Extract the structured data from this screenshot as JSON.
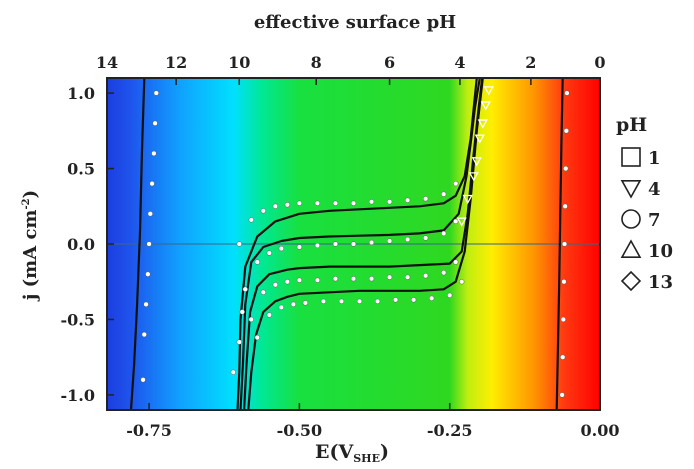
{
  "chart_data": {
    "type": "line",
    "title": "effective surface pH",
    "xlabel": "E(V",
    "xlabel_sub": "SHE",
    "xlabel_close": ")",
    "ylabel": "j (mA cm",
    "ylabel_sup": "-2",
    "ylabel_close": ")",
    "xlim": [
      -0.82,
      0.0
    ],
    "ylim": [
      -1.1,
      1.1
    ],
    "x_ticks": [
      {
        "value": -0.75,
        "label": "-0.75"
      },
      {
        "value": -0.5,
        "label": "-0.50"
      },
      {
        "value": -0.25,
        "label": "-0.25"
      },
      {
        "value": 0.0,
        "label": "0.00"
      }
    ],
    "y_ticks": [
      {
        "value": 1.0,
        "label": "1.0"
      },
      {
        "value": 0.5,
        "label": "0.5"
      },
      {
        "value": 0.0,
        "label": "0.0"
      },
      {
        "value": -0.5,
        "label": "-0.5"
      },
      {
        "value": -1.0,
        "label": "-1.0"
      }
    ],
    "top_axis": {
      "label": "effective surface pH",
      "ticks": [
        {
          "value": -0.82,
          "label": "14"
        },
        {
          "value": -0.705,
          "label": "12"
        },
        {
          "value": -0.6,
          "label": "10"
        },
        {
          "value": -0.472,
          "label": "8"
        },
        {
          "value": -0.35,
          "label": "6"
        },
        {
          "value": -0.233,
          "label": "4"
        },
        {
          "value": -0.115,
          "label": "2"
        },
        {
          "value": 0.0,
          "label": "0"
        }
      ]
    },
    "legend": {
      "title": "pH",
      "placement": "right",
      "items": [
        {
          "symbol": "square",
          "label": "1"
        },
        {
          "symbol": "triangle-down",
          "label": "4"
        },
        {
          "symbol": "circle",
          "label": "7"
        },
        {
          "symbol": "triangle-up",
          "label": "10"
        },
        {
          "symbol": "diamond",
          "label": "13"
        }
      ]
    },
    "background": {
      "kind": "pH color gradient",
      "stops": [
        {
          "x": -0.82,
          "color": "#1c3ee0"
        },
        {
          "x": -0.78,
          "color": "#1e54ec"
        },
        {
          "x": -0.7,
          "color": "#10a0ff"
        },
        {
          "x": -0.61,
          "color": "#00e0ff"
        },
        {
          "x": -0.56,
          "color": "#00e890"
        },
        {
          "x": -0.5,
          "color": "#18e040"
        },
        {
          "x": -0.25,
          "color": "#2fd820"
        },
        {
          "x": -0.22,
          "color": "#c0ee10"
        },
        {
          "x": -0.18,
          "color": "#ffee00"
        },
        {
          "x": -0.11,
          "color": "#ff9500"
        },
        {
          "x": -0.06,
          "color": "#ff3a10"
        },
        {
          "x": 0.0,
          "color": "#ff0000"
        }
      ]
    },
    "series": [
      {
        "style": "line",
        "x": [
          -0.603,
          -0.6,
          -0.598,
          -0.59,
          -0.57,
          -0.54,
          -0.5,
          -0.45,
          -0.4,
          -0.35,
          -0.3,
          -0.26,
          -0.24,
          -0.225,
          -0.215,
          -0.21,
          -0.205
        ],
        "y": [
          -1.1,
          -0.85,
          -0.5,
          -0.15,
          0.05,
          0.15,
          0.2,
          0.22,
          0.23,
          0.24,
          0.25,
          0.27,
          0.32,
          0.45,
          0.7,
          0.9,
          1.1
        ]
      },
      {
        "style": "line",
        "x": [
          -0.598,
          -0.594,
          -0.59,
          -0.58,
          -0.56,
          -0.53,
          -0.5,
          -0.45,
          -0.4,
          -0.35,
          -0.3,
          -0.26,
          -0.235,
          -0.222,
          -0.214,
          -0.208,
          -0.2
        ],
        "y": [
          -1.1,
          -0.8,
          -0.4,
          -0.12,
          -0.02,
          0.02,
          0.04,
          0.05,
          0.055,
          0.06,
          0.07,
          0.09,
          0.2,
          0.45,
          0.7,
          0.9,
          1.1
        ]
      },
      {
        "style": "line",
        "x": [
          -0.592,
          -0.588,
          -0.582,
          -0.57,
          -0.55,
          -0.52,
          -0.5,
          -0.45,
          -0.4,
          -0.35,
          -0.3,
          -0.25,
          -0.23,
          -0.22,
          -0.21,
          -0.202,
          -0.196
        ],
        "y": [
          -1.1,
          -0.8,
          -0.45,
          -0.28,
          -0.2,
          -0.17,
          -0.16,
          -0.15,
          -0.15,
          -0.15,
          -0.14,
          -0.13,
          -0.05,
          0.2,
          0.6,
          0.9,
          1.1
        ]
      },
      {
        "style": "line",
        "x": [
          -0.585,
          -0.58,
          -0.572,
          -0.56,
          -0.54,
          -0.52,
          -0.5,
          -0.45,
          -0.4,
          -0.35,
          -0.3,
          -0.26,
          -0.24,
          -0.225,
          -0.215,
          -0.205,
          -0.195
        ],
        "y": [
          -1.1,
          -0.85,
          -0.6,
          -0.45,
          -0.38,
          -0.35,
          -0.33,
          -0.32,
          -0.31,
          -0.31,
          -0.31,
          -0.3,
          -0.25,
          -0.05,
          0.3,
          0.75,
          1.1
        ]
      },
      {
        "style": "line",
        "x": [
          -0.78,
          -0.775,
          -0.77,
          -0.765,
          -0.762,
          -0.758
        ],
        "y": [
          -1.1,
          -0.8,
          -0.4,
          0.1,
          0.6,
          1.1
        ]
      },
      {
        "style": "line",
        "x": [
          -0.072,
          -0.07,
          -0.068,
          -0.066,
          -0.064,
          -0.062
        ],
        "y": [
          -1.1,
          -0.7,
          -0.3,
          0.2,
          0.7,
          1.1
        ]
      },
      {
        "style": "points",
        "symbol": "circle",
        "x": [
          -0.6,
          -0.58,
          -0.56,
          -0.54,
          -0.52,
          -0.5,
          -0.47,
          -0.44,
          -0.41,
          -0.38,
          -0.35,
          -0.32,
          -0.29,
          -0.26,
          -0.24
        ],
        "y": [
          0.0,
          0.16,
          0.22,
          0.25,
          0.26,
          0.27,
          0.27,
          0.27,
          0.27,
          0.28,
          0.28,
          0.29,
          0.3,
          0.33,
          0.4
        ]
      },
      {
        "style": "points",
        "symbol": "circle",
        "x": [
          -0.59,
          -0.57,
          -0.55,
          -0.53,
          -0.5,
          -0.47,
          -0.44,
          -0.41,
          -0.38,
          -0.35,
          -0.32,
          -0.29,
          -0.26,
          -0.24
        ],
        "y": [
          -0.3,
          -0.12,
          -0.06,
          -0.03,
          -0.02,
          -0.01,
          0.0,
          0.0,
          0.01,
          0.02,
          0.03,
          0.04,
          0.07,
          0.15
        ]
      },
      {
        "style": "points",
        "symbol": "circle",
        "x": [
          -0.58,
          -0.56,
          -0.54,
          -0.52,
          -0.5,
          -0.47,
          -0.44,
          -0.41,
          -0.38,
          -0.35,
          -0.32,
          -0.29,
          -0.26,
          -0.24
        ],
        "y": [
          -0.5,
          -0.32,
          -0.27,
          -0.25,
          -0.24,
          -0.24,
          -0.23,
          -0.23,
          -0.23,
          -0.22,
          -0.22,
          -0.21,
          -0.19,
          -0.12
        ]
      },
      {
        "style": "points",
        "symbol": "circle",
        "x": [
          -0.57,
          -0.55,
          -0.53,
          -0.51,
          -0.49,
          -0.46,
          -0.43,
          -0.4,
          -0.37,
          -0.34,
          -0.31,
          -0.28,
          -0.25,
          -0.23
        ],
        "y": [
          -0.62,
          -0.47,
          -0.42,
          -0.4,
          -0.39,
          -0.38,
          -0.38,
          -0.38,
          -0.38,
          -0.37,
          -0.37,
          -0.36,
          -0.34,
          -0.25
        ]
      },
      {
        "style": "points",
        "symbol": "triangle-down",
        "x": [
          -0.23,
          -0.22,
          -0.21,
          -0.205,
          -0.2,
          -0.195,
          -0.19,
          -0.185
        ],
        "y": [
          0.15,
          0.3,
          0.45,
          0.55,
          0.7,
          0.8,
          0.92,
          1.02
        ]
      },
      {
        "style": "points",
        "symbol": "circle",
        "x": [
          -0.738,
          -0.74,
          -0.742,
          -0.745,
          -0.748,
          -0.75,
          -0.752,
          -0.755,
          -0.758,
          -0.76
        ],
        "y": [
          1.0,
          0.8,
          0.6,
          0.4,
          0.2,
          0.0,
          -0.2,
          -0.4,
          -0.6,
          -0.9
        ]
      },
      {
        "style": "points",
        "symbol": "circle",
        "x": [
          -0.063,
          -0.062,
          -0.061,
          -0.06,
          -0.059,
          -0.058,
          -0.057,
          -0.056,
          -0.055
        ],
        "y": [
          -1.0,
          -0.75,
          -0.5,
          -0.25,
          0.0,
          0.25,
          0.5,
          0.75,
          1.0
        ]
      },
      {
        "style": "points",
        "symbol": "circle",
        "x": [
          -0.61,
          -0.6,
          -0.595
        ],
        "y": [
          -0.85,
          -0.65,
          -0.45
        ]
      }
    ]
  }
}
